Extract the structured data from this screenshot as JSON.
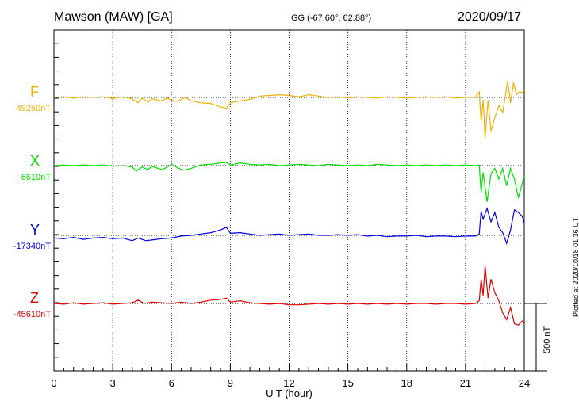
{
  "header": {
    "title": "Mawson (MAW)  [GA]",
    "coords": "GG (-67.60°,  62.88°)",
    "date": "2020/09/17",
    "plotted": "Plotted at 2020/10/18 01:36 UT",
    "scale_label": "500 nT"
  },
  "chart_data": {
    "type": "line",
    "xlabel": "U T (hour)",
    "xlim": [
      0,
      24
    ],
    "xticks": [
      "0",
      "3",
      "6",
      "9",
      "12",
      "15",
      "18",
      "21",
      "24"
    ],
    "scale_bar_nT": 500,
    "grid": true,
    "series": [
      {
        "name": "F",
        "baseline_label": "49250nT",
        "color": "#f0b000",
        "points": [
          [
            0,
            0
          ],
          [
            0.5,
            5
          ],
          [
            1,
            -5
          ],
          [
            1.5,
            5
          ],
          [
            2,
            0
          ],
          [
            2.5,
            5
          ],
          [
            3,
            -8
          ],
          [
            3.5,
            5
          ],
          [
            4,
            -10
          ],
          [
            4.3,
            -40
          ],
          [
            4.5,
            -5
          ],
          [
            4.8,
            -35
          ],
          [
            5,
            -10
          ],
          [
            5.5,
            -25
          ],
          [
            5.8,
            -5
          ],
          [
            6,
            -20
          ],
          [
            6.3,
            -30
          ],
          [
            6.7,
            0
          ],
          [
            7,
            -25
          ],
          [
            7.5,
            -40
          ],
          [
            8,
            -45
          ],
          [
            8.5,
            -70
          ],
          [
            8.8,
            -80
          ],
          [
            9,
            -40
          ],
          [
            9.5,
            -25
          ],
          [
            10,
            -15
          ],
          [
            10.5,
            10
          ],
          [
            11,
            15
          ],
          [
            11.5,
            20
          ],
          [
            12,
            15
          ],
          [
            12.5,
            5
          ],
          [
            13,
            20
          ],
          [
            13.5,
            10
          ],
          [
            14,
            0
          ],
          [
            14.5,
            5
          ],
          [
            15,
            -5
          ],
          [
            15.5,
            5
          ],
          [
            16,
            0
          ],
          [
            16.5,
            -5
          ],
          [
            17,
            5
          ],
          [
            17.5,
            0
          ],
          [
            18,
            -5
          ],
          [
            18.5,
            0
          ],
          [
            19,
            5
          ],
          [
            19.5,
            0
          ],
          [
            20,
            5
          ],
          [
            20.5,
            -5
          ],
          [
            21,
            0
          ],
          [
            21.5,
            0
          ],
          [
            21.7,
            40
          ],
          [
            21.8,
            -180
          ],
          [
            21.9,
            -20
          ],
          [
            22.0,
            -300
          ],
          [
            22.15,
            -20
          ],
          [
            22.3,
            -250
          ],
          [
            22.5,
            -150
          ],
          [
            22.7,
            -60
          ],
          [
            22.9,
            -110
          ],
          [
            23.0,
            -20
          ],
          [
            23.15,
            120
          ],
          [
            23.3,
            -40
          ],
          [
            23.45,
            110
          ],
          [
            23.6,
            20
          ],
          [
            23.75,
            40
          ],
          [
            23.9,
            35
          ],
          [
            24,
            55
          ]
        ]
      },
      {
        "name": "X",
        "baseline_label": "6610nT",
        "color": "#00e000",
        "points": [
          [
            0,
            0
          ],
          [
            0.5,
            5
          ],
          [
            1,
            0
          ],
          [
            1.5,
            5
          ],
          [
            2,
            0
          ],
          [
            2.5,
            5
          ],
          [
            3,
            -5
          ],
          [
            3.5,
            0
          ],
          [
            4,
            -10
          ],
          [
            4.2,
            -40
          ],
          [
            4.5,
            -10
          ],
          [
            4.8,
            -30
          ],
          [
            5,
            -5
          ],
          [
            5.5,
            -30
          ],
          [
            5.8,
            -10
          ],
          [
            6,
            10
          ],
          [
            6.3,
            -15
          ],
          [
            6.6,
            -35
          ],
          [
            7,
            -20
          ],
          [
            7.5,
            5
          ],
          [
            8,
            10
          ],
          [
            8.5,
            20
          ],
          [
            8.8,
            25
          ],
          [
            9,
            5
          ],
          [
            9.5,
            20
          ],
          [
            10,
            10
          ],
          [
            10.5,
            5
          ],
          [
            11,
            10
          ],
          [
            11.5,
            0
          ],
          [
            12,
            5
          ],
          [
            12.5,
            10
          ],
          [
            13,
            5
          ],
          [
            13.5,
            0
          ],
          [
            14,
            10
          ],
          [
            14.5,
            5
          ],
          [
            15,
            0
          ],
          [
            15.5,
            5
          ],
          [
            16,
            0
          ],
          [
            16.5,
            10
          ],
          [
            17,
            5
          ],
          [
            17.5,
            0
          ],
          [
            18,
            5
          ],
          [
            18.5,
            0
          ],
          [
            19,
            5
          ],
          [
            19.5,
            0
          ],
          [
            20,
            5
          ],
          [
            20.5,
            0
          ],
          [
            21,
            5
          ],
          [
            21.5,
            0
          ],
          [
            21.7,
            5
          ],
          [
            21.8,
            -200
          ],
          [
            21.9,
            -50
          ],
          [
            22.1,
            -270
          ],
          [
            22.3,
            -60
          ],
          [
            22.5,
            -20
          ],
          [
            22.7,
            -100
          ],
          [
            22.9,
            -20
          ],
          [
            23.1,
            -150
          ],
          [
            23.3,
            -20
          ],
          [
            23.5,
            -100
          ],
          [
            23.7,
            -240
          ],
          [
            23.9,
            -130
          ],
          [
            24,
            -80
          ]
        ]
      },
      {
        "name": "Y",
        "baseline_label": "-17340nT",
        "color": "#0000e0",
        "points": [
          [
            0,
            -20
          ],
          [
            0.5,
            -25
          ],
          [
            1,
            -15
          ],
          [
            1.5,
            -30
          ],
          [
            2,
            -20
          ],
          [
            2.5,
            -15
          ],
          [
            3,
            -25
          ],
          [
            3.5,
            -20
          ],
          [
            4,
            -40
          ],
          [
            4.3,
            -20
          ],
          [
            4.7,
            -40
          ],
          [
            5,
            -35
          ],
          [
            5.5,
            -25
          ],
          [
            6,
            -20
          ],
          [
            6.5,
            -5
          ],
          [
            7,
            0
          ],
          [
            7.5,
            10
          ],
          [
            8,
            20
          ],
          [
            8.5,
            40
          ],
          [
            8.8,
            60
          ],
          [
            9,
            15
          ],
          [
            9.5,
            20
          ],
          [
            10,
            10
          ],
          [
            10.5,
            0
          ],
          [
            11,
            5
          ],
          [
            11.5,
            10
          ],
          [
            12,
            0
          ],
          [
            12.5,
            5
          ],
          [
            13,
            10
          ],
          [
            13.5,
            0
          ],
          [
            14,
            0
          ],
          [
            14.5,
            5
          ],
          [
            15,
            0
          ],
          [
            15.5,
            5
          ],
          [
            16,
            -5
          ],
          [
            16.5,
            0
          ],
          [
            17,
            -10
          ],
          [
            17.5,
            -5
          ],
          [
            18,
            -5
          ],
          [
            18.5,
            0
          ],
          [
            19,
            -10
          ],
          [
            19.5,
            -5
          ],
          [
            20,
            -5
          ],
          [
            20.5,
            -10
          ],
          [
            21,
            -5
          ],
          [
            21.5,
            -5
          ],
          [
            21.7,
            10
          ],
          [
            21.8,
            180
          ],
          [
            21.9,
            120
          ],
          [
            22.1,
            200
          ],
          [
            22.3,
            100
          ],
          [
            22.5,
            170
          ],
          [
            22.7,
            60
          ],
          [
            22.9,
            20
          ],
          [
            23.1,
            -60
          ],
          [
            23.3,
            40
          ],
          [
            23.5,
            190
          ],
          [
            23.7,
            170
          ],
          [
            23.9,
            140
          ],
          [
            24,
            90
          ]
        ]
      },
      {
        "name": "Z",
        "baseline_label": "-45610nT",
        "color": "#e00000",
        "points": [
          [
            0,
            0
          ],
          [
            0.5,
            -5
          ],
          [
            1,
            5
          ],
          [
            1.5,
            -5
          ],
          [
            2,
            0
          ],
          [
            2.5,
            5
          ],
          [
            3,
            -5
          ],
          [
            3.5,
            0
          ],
          [
            4,
            5
          ],
          [
            4.3,
            25
          ],
          [
            4.6,
            0
          ],
          [
            5,
            10
          ],
          [
            5.5,
            5
          ],
          [
            6,
            0
          ],
          [
            6.5,
            10
          ],
          [
            7,
            0
          ],
          [
            7.5,
            10
          ],
          [
            8,
            25
          ],
          [
            8.5,
            30
          ],
          [
            8.8,
            40
          ],
          [
            9,
            10
          ],
          [
            9.5,
            20
          ],
          [
            10,
            5
          ],
          [
            10.5,
            0
          ],
          [
            11,
            -5
          ],
          [
            11.5,
            0
          ],
          [
            12,
            -10
          ],
          [
            12.5,
            -10
          ],
          [
            13,
            -5
          ],
          [
            13.5,
            0
          ],
          [
            14,
            -5
          ],
          [
            14.5,
            0
          ],
          [
            15,
            -5
          ],
          [
            15.5,
            0
          ],
          [
            16,
            -5
          ],
          [
            16.5,
            0
          ],
          [
            17,
            -5
          ],
          [
            17.5,
            0
          ],
          [
            18,
            -5
          ],
          [
            18.5,
            0
          ],
          [
            19,
            0
          ],
          [
            19.5,
            -5
          ],
          [
            20,
            0
          ],
          [
            20.5,
            0
          ],
          [
            21,
            -5
          ],
          [
            21.5,
            0
          ],
          [
            21.7,
            20
          ],
          [
            21.8,
            180
          ],
          [
            21.9,
            60
          ],
          [
            22.0,
            280
          ],
          [
            22.15,
            40
          ],
          [
            22.3,
            180
          ],
          [
            22.5,
            80
          ],
          [
            22.7,
            20
          ],
          [
            22.9,
            -70
          ],
          [
            23.1,
            -120
          ],
          [
            23.3,
            -30
          ],
          [
            23.5,
            -150
          ],
          [
            23.7,
            -160
          ],
          [
            23.9,
            -130
          ],
          [
            24,
            -150
          ]
        ]
      }
    ]
  }
}
